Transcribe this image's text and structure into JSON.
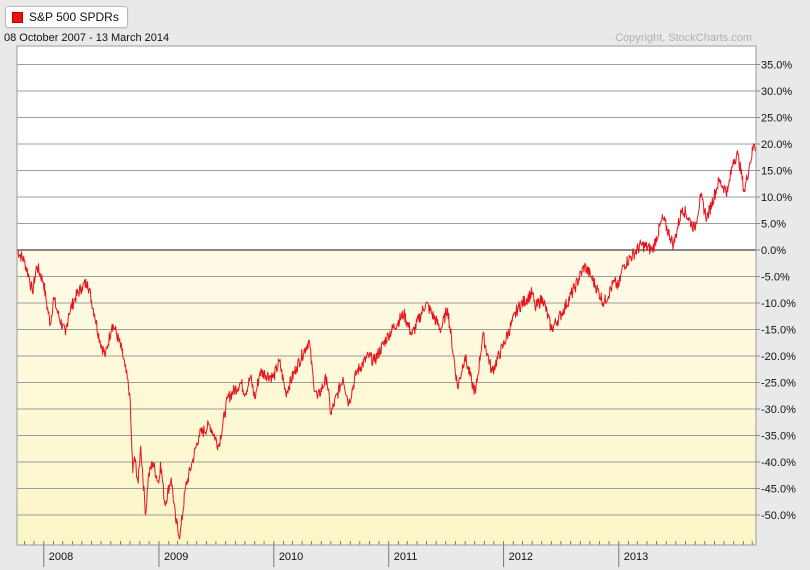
{
  "legend": {
    "series_name": "S&P 500 SPDRs",
    "swatch_color": "#e8141c"
  },
  "header": {
    "date_range": "08 October 2007 - 13 March 2014",
    "copyright": "Copyright, StockCharts.com"
  },
  "chart_data": {
    "type": "line",
    "title": "",
    "xlabel": "",
    "ylabel": "",
    "y_unit": "percent change",
    "ylim": [
      -55,
      38
    ],
    "y_ticks": [
      35,
      30,
      25,
      20,
      15,
      10,
      5,
      0,
      -5,
      -10,
      -15,
      -20,
      -25,
      -30,
      -35,
      -40,
      -45,
      -50
    ],
    "y_tick_labels": [
      "35.0%",
      "30.0%",
      "25.0%",
      "20.0%",
      "15.0%",
      "10.0%",
      "5.0%",
      "0.0%",
      "-5.0%",
      "-10.0%",
      "-15.0%",
      "-20.0%",
      "-25.0%",
      "-30.0%",
      "-35.0%",
      "-40.0%",
      "-45.0%",
      "-50.0%"
    ],
    "x_tick_labels": [
      "2008",
      "2009",
      "2010",
      "2011",
      "2012",
      "2013"
    ],
    "x_tick_dates": [
      "2008-01-01",
      "2009-01-01",
      "2010-01-01",
      "2011-01-01",
      "2012-01-01",
      "2013-01-01"
    ],
    "xlim": [
      "2007-10-08",
      "2014-03-13"
    ],
    "grid": true,
    "legend_position": "top-left",
    "series": [
      {
        "name": "S&P 500 SPDRs",
        "color": "#e8141c",
        "points": [
          [
            "2007-10-08",
            0
          ],
          [
            "2007-10-31",
            -2
          ],
          [
            "2007-11-15",
            -5
          ],
          [
            "2007-11-26",
            -8
          ],
          [
            "2007-12-10",
            -3
          ],
          [
            "2007-12-31",
            -6
          ],
          [
            "2008-01-10",
            -10
          ],
          [
            "2008-01-22",
            -14
          ],
          [
            "2008-02-01",
            -9
          ],
          [
            "2008-02-15",
            -12
          ],
          [
            "2008-03-10",
            -16
          ],
          [
            "2008-03-20",
            -12
          ],
          [
            "2008-04-10",
            -9
          ],
          [
            "2008-05-01",
            -7
          ],
          [
            "2008-05-19",
            -6
          ],
          [
            "2008-06-10",
            -12
          ],
          [
            "2008-06-27",
            -17
          ],
          [
            "2008-07-15",
            -20
          ],
          [
            "2008-08-05",
            -14
          ],
          [
            "2008-08-15",
            -15
          ],
          [
            "2008-09-05",
            -19
          ],
          [
            "2008-09-15",
            -22
          ],
          [
            "2008-09-30",
            -27
          ],
          [
            "2008-10-10",
            -42
          ],
          [
            "2008-10-15",
            -39
          ],
          [
            "2008-10-27",
            -44
          ],
          [
            "2008-11-04",
            -37
          ],
          [
            "2008-11-20",
            -50
          ],
          [
            "2008-11-28",
            -43
          ],
          [
            "2008-12-12",
            -40
          ],
          [
            "2008-12-31",
            -44
          ],
          [
            "2009-01-06",
            -40
          ],
          [
            "2009-01-20",
            -48
          ],
          [
            "2009-02-09",
            -43
          ],
          [
            "2009-02-23",
            -51
          ],
          [
            "2009-03-09",
            -54
          ],
          [
            "2009-03-26",
            -45
          ],
          [
            "2009-04-17",
            -40
          ],
          [
            "2009-05-08",
            -35
          ],
          [
            "2009-06-12",
            -33
          ],
          [
            "2009-07-10",
            -37
          ],
          [
            "2009-08-07",
            -28
          ],
          [
            "2009-09-18",
            -25
          ],
          [
            "2009-10-02",
            -27
          ],
          [
            "2009-10-19",
            -24
          ],
          [
            "2009-11-02",
            -28
          ],
          [
            "2009-11-18",
            -23
          ],
          [
            "2009-12-31",
            -24
          ],
          [
            "2010-01-19",
            -21
          ],
          [
            "2010-02-08",
            -27
          ],
          [
            "2010-03-15",
            -22
          ],
          [
            "2010-04-23",
            -17
          ],
          [
            "2010-05-07",
            -25
          ],
          [
            "2010-05-20",
            -28
          ],
          [
            "2010-06-18",
            -24
          ],
          [
            "2010-07-01",
            -31
          ],
          [
            "2010-08-09",
            -24
          ],
          [
            "2010-08-27",
            -29
          ],
          [
            "2010-09-21",
            -23
          ],
          [
            "2010-10-29",
            -20
          ],
          [
            "2010-11-16",
            -21
          ],
          [
            "2010-12-31",
            -16
          ],
          [
            "2011-02-18",
            -12
          ],
          [
            "2011-03-16",
            -16
          ],
          [
            "2011-04-29",
            -10
          ],
          [
            "2011-06-16",
            -15
          ],
          [
            "2011-07-07",
            -11
          ],
          [
            "2011-08-08",
            -26
          ],
          [
            "2011-08-31",
            -20
          ],
          [
            "2011-09-22",
            -25
          ],
          [
            "2011-10-04",
            -27
          ],
          [
            "2011-10-27",
            -16
          ],
          [
            "2011-11-25",
            -23
          ],
          [
            "2011-12-31",
            -18
          ],
          [
            "2012-02-15",
            -11
          ],
          [
            "2012-04-02",
            -8
          ],
          [
            "2012-04-10",
            -11
          ],
          [
            "2012-05-04",
            -9
          ],
          [
            "2012-06-01",
            -15
          ],
          [
            "2012-07-03",
            -12
          ],
          [
            "2012-08-15",
            -7
          ],
          [
            "2012-09-14",
            -3
          ],
          [
            "2012-10-05",
            -5
          ],
          [
            "2012-11-15",
            -10
          ],
          [
            "2012-12-18",
            -6
          ],
          [
            "2012-12-31",
            -7
          ],
          [
            "2013-01-15",
            -3
          ],
          [
            "2013-03-14",
            1
          ],
          [
            "2013-04-18",
            0
          ],
          [
            "2013-05-21",
            6
          ],
          [
            "2013-06-24",
            1
          ],
          [
            "2013-07-22",
            8
          ],
          [
            "2013-08-30",
            4
          ],
          [
            "2013-09-18",
            10
          ],
          [
            "2013-10-08",
            6
          ],
          [
            "2013-11-15",
            13
          ],
          [
            "2013-12-13",
            11
          ],
          [
            "2013-12-31",
            17
          ],
          [
            "2014-01-15",
            18
          ],
          [
            "2014-02-04",
            11
          ],
          [
            "2014-02-20",
            16
          ],
          [
            "2014-03-07",
            20
          ],
          [
            "2014-03-13",
            19
          ]
        ]
      }
    ]
  }
}
